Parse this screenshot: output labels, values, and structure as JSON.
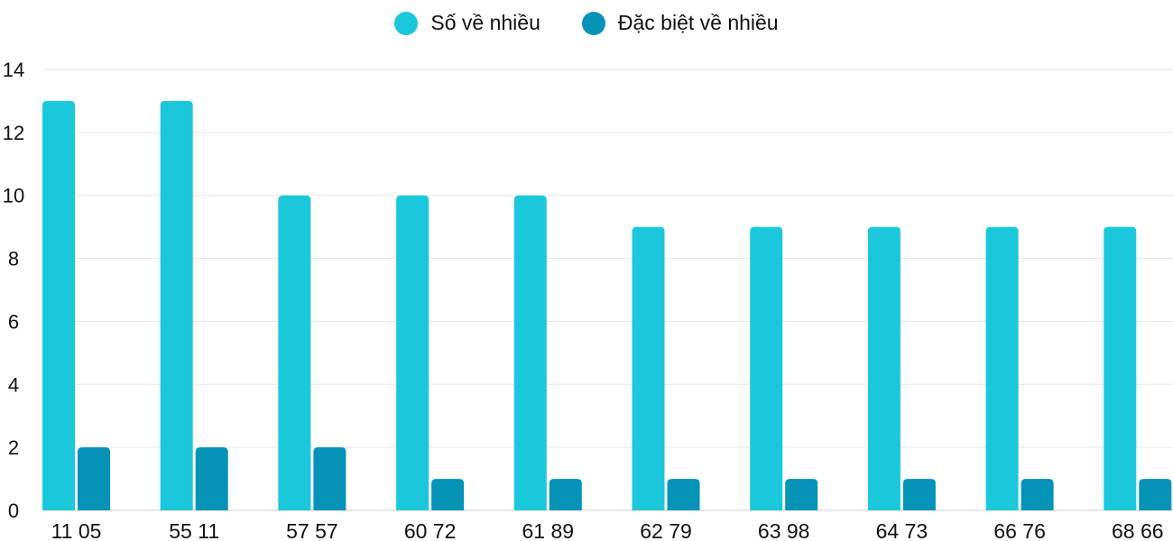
{
  "chart_data": {
    "type": "bar",
    "categories": [
      "11 05",
      "55 11",
      "57 57",
      "60 72",
      "61 89",
      "62 79",
      "63 98",
      "64 73",
      "66 76",
      "68 66"
    ],
    "series": [
      {
        "name": "Số về nhiều",
        "color": "#1bc8db",
        "values": [
          13,
          13,
          10,
          10,
          10,
          9,
          9,
          9,
          9,
          9
        ]
      },
      {
        "name": "Đặc biệt về nhiều",
        "color": "#0593b8",
        "values": [
          2,
          2,
          2,
          1,
          1,
          1,
          1,
          1,
          1,
          1
        ]
      }
    ],
    "ylim": [
      0,
      14
    ],
    "yticks": [
      0,
      2,
      4,
      6,
      8,
      10,
      12,
      14
    ],
    "grid": true,
    "legend": "top-center"
  }
}
